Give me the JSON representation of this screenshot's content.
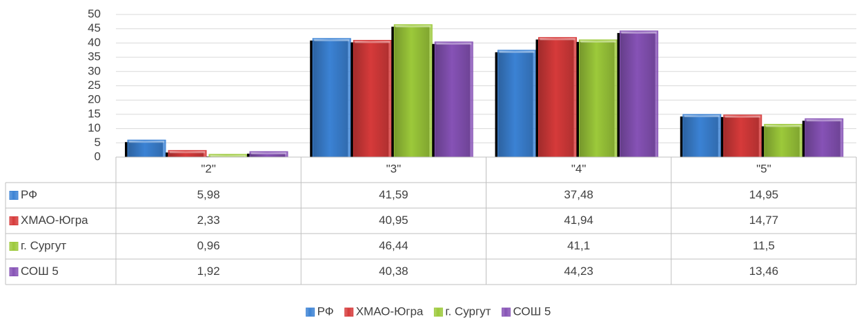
{
  "chart_data": {
    "type": "bar",
    "categories": [
      "\"2\"",
      "\"3\"",
      "\"4\"",
      "\"5\""
    ],
    "series": [
      {
        "name": "РФ",
        "color": "#3b82d4",
        "values": [
          5.98,
          41.59,
          37.48,
          14.95
        ],
        "value_labels": [
          "5,98",
          "41,59",
          "37,48",
          "14,95"
        ]
      },
      {
        "name": "ХМАО-Югра",
        "color": "#d63a3a",
        "values": [
          2.33,
          40.95,
          41.94,
          14.77
        ],
        "value_labels": [
          "2,33",
          "40,95",
          "41,94",
          "14,77"
        ]
      },
      {
        "name": "г. Сургут",
        "color": "#9cc93a",
        "values": [
          0.96,
          46.44,
          41.1,
          11.5
        ],
        "value_labels": [
          "0,96",
          "46,44",
          "41,1",
          "11,5"
        ]
      },
      {
        "name": "СОШ 5",
        "color": "#8652b6",
        "values": [
          1.92,
          40.38,
          44.23,
          13.46
        ],
        "value_labels": [
          "1,92",
          "40,38",
          "44,23",
          "13,46"
        ]
      }
    ],
    "ylim": [
      0,
      50
    ],
    "yticks": [
      0,
      5,
      10,
      15,
      20,
      25,
      30,
      35,
      40,
      45,
      50
    ],
    "grid": true,
    "legend": "bottom"
  }
}
